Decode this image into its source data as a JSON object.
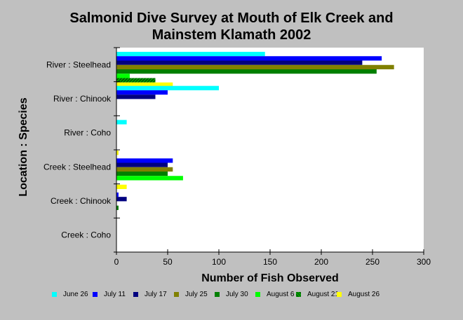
{
  "chart_data": {
    "type": "bar",
    "orientation": "horizontal",
    "title": [
      "Salmonid Dive Survey at Mouth of Elk Creek and",
      "Mainstem Klamath 2002"
    ],
    "xlabel": "Number of Fish Observed",
    "ylabel": "Location : Species",
    "xlim": [
      0,
      300
    ],
    "xticks": [
      0,
      50,
      100,
      150,
      200,
      250,
      300
    ],
    "categories": [
      "River : Steelhead",
      "River : Chinook",
      "River : Coho",
      "Creek : Steelhead",
      "Creek : Chinook",
      "Creek : Coho"
    ],
    "series": [
      {
        "name": "June 26",
        "color": "#00ffff",
        "values": [
          145,
          100,
          10,
          0,
          0,
          0
        ]
      },
      {
        "name": "July 11",
        "color": "#0000ff",
        "values": [
          259,
          50,
          0,
          55,
          2,
          0
        ]
      },
      {
        "name": "July 17",
        "color": "#00007f",
        "values": [
          240,
          38,
          0,
          50,
          10,
          0
        ]
      },
      {
        "name": "July 25",
        "color": "#808000",
        "values": [
          271,
          0,
          0,
          55,
          0,
          0
        ]
      },
      {
        "name": "July 30",
        "color": "#007f00",
        "values": [
          254,
          0,
          0,
          50,
          2,
          0
        ]
      },
      {
        "name": "August 6",
        "color": "#00ff00",
        "values": [
          13,
          0,
          0,
          65,
          0,
          0
        ]
      },
      {
        "name": "August 21",
        "color": "#008000",
        "pattern": "hatch",
        "values": [
          38,
          0,
          0,
          0,
          0,
          0
        ]
      },
      {
        "name": "August 26",
        "color": "#ffff00",
        "values": [
          55,
          0,
          2,
          10,
          0,
          0
        ]
      }
    ],
    "legend_position": "bottom",
    "grid": false
  }
}
